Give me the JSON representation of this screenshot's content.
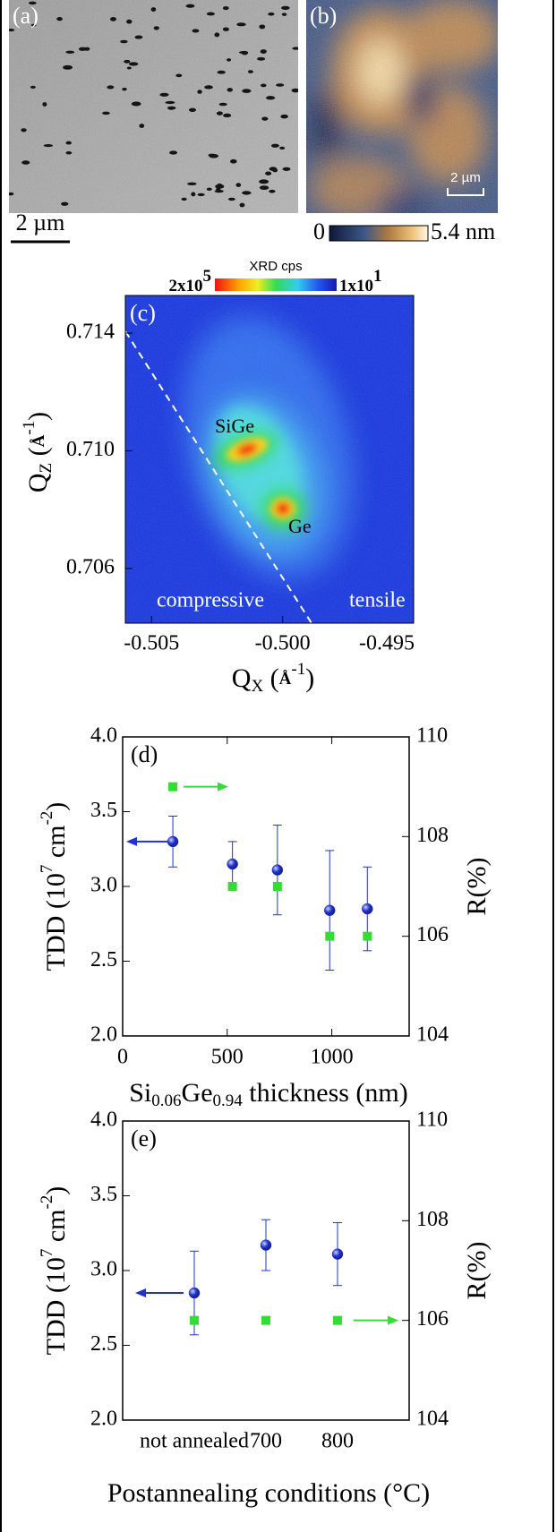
{
  "panels": {
    "a": {
      "label": "(a)",
      "scale_bar": "2 µm"
    },
    "b": {
      "label": "(b)",
      "scale_bar": "2 µm",
      "colorbar_min": "0",
      "colorbar_max": "5.4 nm"
    }
  },
  "chart_data": [
    {
      "type": "heatmap",
      "label": "(c)",
      "colorbar_title": "XRD cps",
      "colorbar_max": [
        "2x10",
        "5"
      ],
      "colorbar_min": [
        "1x10",
        "1"
      ],
      "x_label": [
        "Q",
        "X",
        " (",
        "Å",
        "-1",
        ")"
      ],
      "y_label": [
        "Q",
        "Z",
        " (",
        "Å",
        "-1",
        ")"
      ],
      "annotations": [
        "SiGe",
        "Ge",
        "compressive",
        "tensile"
      ],
      "xlim": [
        -0.506,
        -0.495
      ],
      "xticks": [
        -0.505,
        {
          "value": -0.5,
          "label": "-0.500"
        },
        -0.495
      ],
      "ylim": [
        0.70414,
        0.71528
      ],
      "yticks": [
        0.706,
        {
          "value": 0.71,
          "label": "0.710"
        },
        0.714
      ]
    },
    {
      "type": "scatter",
      "label": "(d)",
      "x_label": [
        "Si",
        "0.06",
        "Ge",
        "0.94",
        " thickness (nm)"
      ],
      "y_label": [
        "TDD (10",
        "7",
        " cm",
        "-2",
        ")"
      ],
      "y2_label": "R(%)",
      "x": [
        240,
        525,
        740,
        990,
        1170
      ],
      "xlim": [
        0,
        1370
      ],
      "xticks": [
        0,
        500,
        1000
      ],
      "ylim": [
        2,
        4
      ],
      "yticks": [
        {
          "value": 2,
          "label": "2.0"
        },
        2.5,
        {
          "value": 3,
          "label": "3.0"
        },
        3.5,
        {
          "value": 4,
          "label": "4.0"
        }
      ],
      "y2lim": [
        104,
        110
      ],
      "y2ticks": [
        104,
        106,
        108,
        110
      ],
      "series": [
        {
          "color": "#2233cc",
          "marker": "circle",
          "values": [
            3.3,
            3.15,
            3.11,
            2.84,
            2.85
          ],
          "errors": [
            0.17,
            0.15,
            0.3,
            0.4,
            0.28
          ]
        },
        {
          "color": "#33dd33",
          "marker": "square",
          "axis": "y2",
          "values": [
            109,
            107,
            107,
            106,
            106
          ]
        }
      ]
    },
    {
      "type": "scatter",
      "label": "(e)",
      "x_label": [
        "Postannealing conditions (°C)"
      ],
      "y_label": [
        "TDD (10",
        "7",
        " cm",
        "-2",
        ")"
      ],
      "y2_label": "R(%)",
      "categories": [
        "not annealed",
        "700",
        "800"
      ],
      "ylim": [
        2,
        4
      ],
      "yticks": [
        {
          "value": 2,
          "label": "2.0"
        },
        2.5,
        {
          "value": 3,
          "label": "3.0"
        },
        3.5,
        {
          "value": 4,
          "label": "4.0"
        }
      ],
      "y2lim": [
        104,
        110
      ],
      "y2ticks": [
        104,
        106,
        108,
        110
      ],
      "series": [
        {
          "color": "#2233cc",
          "marker": "circle",
          "values": [
            2.85,
            3.17,
            3.11
          ],
          "errors": [
            0.28,
            0.17,
            0.21
          ]
        },
        {
          "color": "#33dd33",
          "marker": "square",
          "axis": "y2",
          "values": [
            106,
            106,
            106
          ]
        }
      ]
    }
  ]
}
